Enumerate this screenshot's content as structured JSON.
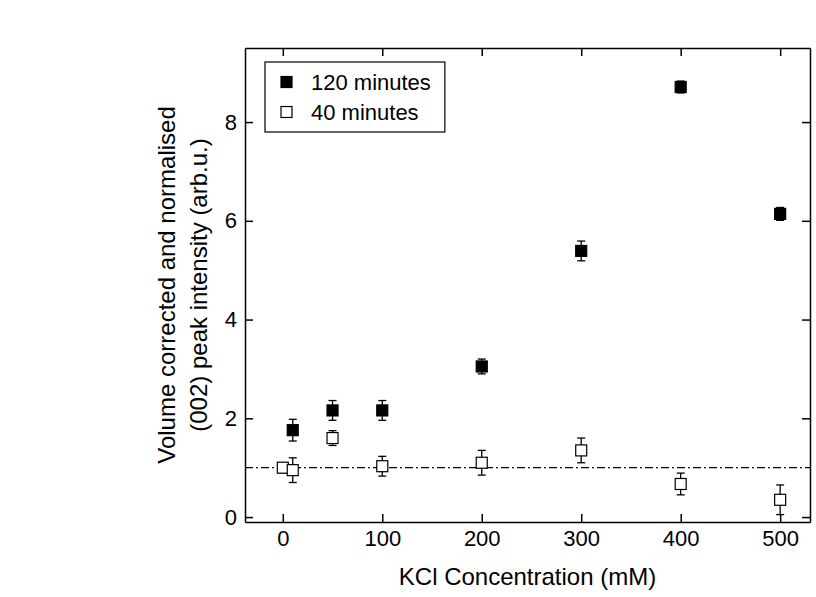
{
  "chart_data": {
    "type": "scatter",
    "x_label": "KCl Concentration (mM)",
    "y_label": [
      "Volume corrected and normalised",
      "(002) peak intensity (arb.u.)"
    ],
    "xlim": [
      -38,
      530
    ],
    "ylim": [
      -0.1,
      9.5
    ],
    "xticks": [
      0,
      100,
      200,
      300,
      400,
      500
    ],
    "yticks": [
      0,
      2,
      4,
      6,
      8
    ],
    "legend": "upper left",
    "reference_line": 1,
    "series": [
      {
        "name": "120 minutes",
        "color": "#000000",
        "marker": "square",
        "x": [
          10,
          50,
          100,
          200,
          300,
          400,
          500
        ],
        "values": [
          1.76,
          2.16,
          2.16,
          3.05,
          5.39,
          8.71,
          6.14
        ],
        "errors": [
          0.22,
          0.2,
          0.2,
          0.15,
          0.2,
          0.12,
          0.13
        ]
      },
      {
        "name": "40 minutes",
        "color": "#000000",
        "marker": "open-square",
        "x": [
          0,
          10,
          50,
          100,
          200,
          300,
          400,
          500
        ],
        "values": [
          1.0,
          0.95,
          1.6,
          1.03,
          1.1,
          1.35,
          0.67,
          0.35
        ],
        "errors": [
          0.1,
          0.25,
          0.15,
          0.2,
          0.25,
          0.25,
          0.22,
          0.3
        ]
      }
    ]
  }
}
